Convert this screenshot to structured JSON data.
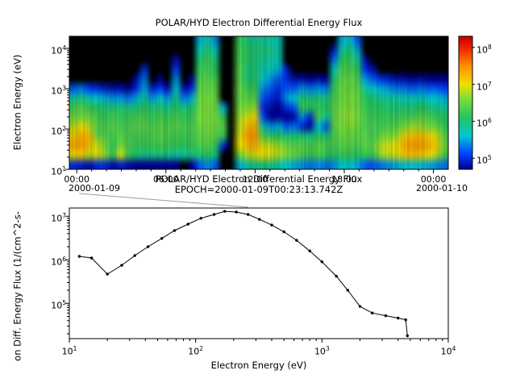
{
  "colors": {
    "background": "#ffffff",
    "line": "#000000",
    "callout": "#9a9a9a",
    "colormap_stops": [
      {
        "log10": 4.7,
        "hex": "#000090"
      },
      {
        "log10": 5.1,
        "hex": "#0040ff"
      },
      {
        "log10": 5.6,
        "hex": "#00c8d2"
      },
      {
        "log10": 6.1,
        "hex": "#25c45f"
      },
      {
        "log10": 6.6,
        "hex": "#7ade3c"
      },
      {
        "log10": 7.0,
        "hex": "#f0e000"
      },
      {
        "log10": 7.5,
        "hex": "#ff9000"
      },
      {
        "log10": 8.0,
        "hex": "#ee2200"
      },
      {
        "log10": 8.3,
        "hex": "#c80000"
      }
    ]
  },
  "top_panel": {
    "title": "POLAR/HYD  Electron Differential Energy Flux",
    "ylabel": "Electron Energy (eV)",
    "yticks": [
      {
        "label": "10^1",
        "log10": 1
      },
      {
        "label": "10^2",
        "log10": 2
      },
      {
        "label": "10^3",
        "log10": 3
      },
      {
        "label": "10^4",
        "log10": 4
      }
    ],
    "xticks": [
      {
        "label": "00:00",
        "hour": 0
      },
      {
        "label": "06:00",
        "hour": 6
      },
      {
        "label": "12:00",
        "hour": 12
      },
      {
        "label": "18:00",
        "hour": 18
      },
      {
        "label": "00:00",
        "hour": 24
      }
    ],
    "date_left": "2000-01-09",
    "date_right": "2000-01-10"
  },
  "colorbar": {
    "log10_min": 4.7,
    "log10_max": 8.3,
    "ticks": [
      {
        "label": "10^5",
        "log10": 5
      },
      {
        "label": "10^6",
        "log10": 6
      },
      {
        "label": "10^7",
        "log10": 7
      },
      {
        "label": "10^8",
        "log10": 8
      }
    ]
  },
  "bottom_panel": {
    "title_line1": "POLAR/HYD  Electron Differential Energy Flux",
    "title_line2": "EPOCH=2000-01-09T00:23:13.742Z",
    "xlabel": "Electron Energy (eV)",
    "ylabel": "on Diff. Energy Flux (1/(cm^2-s-",
    "xticks": [
      {
        "label": "10^1",
        "log10": 1
      },
      {
        "label": "10^2",
        "log10": 2
      },
      {
        "label": "10^3",
        "log10": 3
      },
      {
        "label": "10^4",
        "log10": 4
      }
    ],
    "yticks": [
      {
        "label": "10^5",
        "log10": 5
      },
      {
        "label": "10^6",
        "log10": 6
      },
      {
        "label": "10^7",
        "log10": 7
      }
    ]
  },
  "chart_data": [
    {
      "type": "heatmap",
      "title": "POLAR/HYD  Electron Differential Energy Flux",
      "ylabel": "Electron Energy (eV)",
      "x_range_hours": [
        0,
        24
      ],
      "x_date_start": "2000-01-09",
      "x_date_end": "2000-01-10",
      "y_log10_ev_range": [
        1.0,
        4.3
      ],
      "color_log10_flux_range": [
        4.7,
        8.3
      ],
      "time_bin_hours": 0.5,
      "rows_order": "top-to-bottom, energy log10 4.3 down to 1.0, value 0 = black/no-data",
      "values_log10_flux": [
        [
          0,
          0,
          0,
          0,
          0,
          5.2,
          5.8,
          6.3,
          6.5,
          6.8,
          7.1,
          7.3,
          7.0,
          5.0
        ],
        [
          0,
          0,
          0,
          0,
          0,
          5.3,
          5.9,
          6.4,
          6.6,
          7.0,
          7.3,
          7.4,
          7.1,
          4.9
        ],
        [
          0,
          0,
          0,
          0,
          0,
          5.1,
          5.7,
          6.2,
          6.5,
          6.8,
          7.2,
          7.2,
          6.8,
          4.8
        ],
        [
          0,
          0,
          0,
          0,
          0,
          5.0,
          5.6,
          6.1,
          6.3,
          6.4,
          6.5,
          6.9,
          6.9,
          5.0
        ],
        [
          0,
          0,
          0,
          0,
          0,
          4.9,
          5.5,
          6.0,
          6.2,
          6.3,
          6.4,
          6.6,
          6.7,
          5.0
        ],
        [
          0,
          0,
          0,
          0,
          0,
          4.8,
          5.4,
          6.0,
          6.3,
          6.4,
          6.3,
          6.2,
          6.1,
          4.8
        ],
        [
          0,
          0,
          0,
          0,
          0,
          4.8,
          5.4,
          6.0,
          6.2,
          6.3,
          6.4,
          6.6,
          6.9,
          4.9
        ],
        [
          0,
          0,
          0,
          0,
          0,
          4.7,
          5.3,
          5.9,
          6.2,
          6.3,
          6.3,
          6.3,
          6.2,
          4.8
        ],
        [
          0,
          0,
          0,
          0,
          4.8,
          5.0,
          5.5,
          6.0,
          6.3,
          6.4,
          6.3,
          6.2,
          6.0,
          4.7
        ],
        [
          0,
          0,
          0,
          5.0,
          5.3,
          5.5,
          5.8,
          6.1,
          6.3,
          6.4,
          6.3,
          6.2,
          5.9,
          4.7
        ],
        [
          0,
          0,
          0,
          0,
          0,
          4.9,
          5.4,
          6.0,
          6.2,
          6.3,
          6.3,
          6.2,
          5.9,
          4.6
        ],
        [
          0,
          0,
          0,
          0,
          4.7,
          5.1,
          5.6,
          6.0,
          6.3,
          6.4,
          6.4,
          6.3,
          6.0,
          4.7
        ],
        [
          0,
          0,
          0,
          0,
          0,
          4.8,
          5.4,
          5.9,
          6.2,
          6.3,
          6.3,
          6.2,
          5.9,
          4.6
        ],
        [
          0,
          0,
          4.8,
          5.1,
          5.4,
          5.6,
          5.9,
          6.1,
          6.3,
          6.4,
          6.3,
          6.2,
          5.8,
          4.6
        ],
        [
          0,
          0,
          0,
          0,
          0,
          4.8,
          5.3,
          5.9,
          6.2,
          6.3,
          6.2,
          6.1,
          5.8,
          4.5
        ],
        [
          0,
          0,
          0,
          0,
          4.7,
          5.0,
          5.5,
          6.0,
          6.2,
          6.3,
          6.3,
          6.2,
          5.9,
          4.6
        ],
        [
          5.5,
          5.8,
          6.0,
          6.2,
          6.3,
          6.4,
          6.5,
          6.5,
          6.6,
          6.5,
          6.4,
          6.3,
          6.0,
          5.2
        ],
        [
          5.8,
          6.0,
          6.2,
          6.3,
          6.4,
          6.5,
          6.6,
          6.6,
          6.6,
          6.6,
          6.5,
          6.4,
          6.1,
          5.4
        ],
        [
          5.4,
          5.7,
          6.0,
          6.1,
          6.3,
          6.4,
          6.5,
          6.5,
          6.6,
          6.5,
          6.4,
          6.2,
          5.9,
          5.2
        ],
        [
          0,
          0,
          0,
          0,
          0,
          0,
          0,
          5.5,
          6.2,
          6.4,
          6.2,
          5.0,
          0,
          0
        ],
        [
          0,
          0,
          0,
          0,
          0,
          0,
          0,
          0,
          0,
          0,
          0,
          0,
          0,
          0
        ],
        [
          6.2,
          6.3,
          6.3,
          6.4,
          6.4,
          6.5,
          6.5,
          6.6,
          6.7,
          6.8,
          6.9,
          7.0,
          6.5,
          5.5
        ],
        [
          6.0,
          6.1,
          6.1,
          6.0,
          6.0,
          6.2,
          6.4,
          6.6,
          6.9,
          7.2,
          7.4,
          7.2,
          6.8,
          5.8
        ],
        [
          5.9,
          6.0,
          6.0,
          6.0,
          6.1,
          6.2,
          6.4,
          6.7,
          7.0,
          7.3,
          7.4,
          7.3,
          6.9,
          5.9
        ],
        [
          5.9,
          6.0,
          5.9,
          5.8,
          5.6,
          5.4,
          5.2,
          5.0,
          5.2,
          5.8,
          6.4,
          6.9,
          7.0,
          6.0
        ],
        [
          5.8,
          5.9,
          5.8,
          5.7,
          5.4,
          5.2,
          5.0,
          4.8,
          4.7,
          5.4,
          6.2,
          6.8,
          6.9,
          5.9
        ],
        [
          5.7,
          5.8,
          5.7,
          5.5,
          5.2,
          5.0,
          4.9,
          4.7,
          4.8,
          5.5,
          6.1,
          6.7,
          6.8,
          5.8
        ],
        [
          0,
          0,
          0,
          4.9,
          5.0,
          5.2,
          5.4,
          5.0,
          4.7,
          5.2,
          6.0,
          6.5,
          6.6,
          5.6
        ],
        [
          0,
          0,
          0,
          0,
          4.8,
          5.2,
          5.6,
          5.2,
          4.8,
          5.3,
          6.0,
          6.4,
          6.5,
          5.5
        ],
        [
          0,
          0,
          0,
          0,
          4.8,
          5.4,
          6.0,
          6.2,
          5.4,
          5.0,
          6.0,
          6.4,
          6.3,
          5.4
        ],
        [
          0,
          0,
          0,
          0,
          4.7,
          5.3,
          5.9,
          6.1,
          5.0,
          4.8,
          5.9,
          6.3,
          6.2,
          5.3
        ],
        [
          0,
          0,
          0,
          0,
          4.8,
          5.4,
          6.0,
          6.2,
          6.3,
          5.6,
          6.1,
          6.4,
          6.3,
          5.4
        ],
        [
          0,
          0,
          0,
          0,
          4.7,
          5.3,
          5.9,
          6.1,
          5.8,
          5.2,
          6.0,
          6.3,
          6.2,
          5.3
        ],
        [
          0,
          4.9,
          5.3,
          5.7,
          6.0,
          6.2,
          6.3,
          6.4,
          6.4,
          6.4,
          6.3,
          6.3,
          6.1,
          5.4
        ],
        [
          5.5,
          5.8,
          6.1,
          6.3,
          6.4,
          6.5,
          6.5,
          6.6,
          6.6,
          6.6,
          6.5,
          6.4,
          6.2,
          5.6
        ],
        [
          5.7,
          6.0,
          6.2,
          6.3,
          6.5,
          6.5,
          6.6,
          6.6,
          6.7,
          6.6,
          6.5,
          6.4,
          6.2,
          5.6
        ],
        [
          5.2,
          5.5,
          5.9,
          6.1,
          6.3,
          6.4,
          6.5,
          6.5,
          6.6,
          6.5,
          6.4,
          6.3,
          6.1,
          5.5
        ],
        [
          0,
          0,
          4.8,
          5.0,
          5.4,
          5.8,
          6.1,
          6.2,
          6.3,
          6.3,
          6.4,
          6.4,
          6.2,
          5.2
        ],
        [
          0,
          0,
          0,
          4.8,
          5.2,
          5.6,
          6.0,
          6.1,
          6.2,
          6.3,
          6.3,
          6.4,
          6.2,
          5.2
        ],
        [
          0,
          0,
          0,
          0,
          5.0,
          5.5,
          5.9,
          6.1,
          6.2,
          6.3,
          6.5,
          6.8,
          6.7,
          5.3
        ],
        [
          0,
          0,
          0,
          0,
          4.9,
          5.4,
          5.8,
          6.0,
          6.2,
          6.3,
          6.6,
          6.9,
          6.8,
          5.4
        ],
        [
          0,
          0,
          0,
          0,
          4.8,
          5.3,
          5.8,
          6.0,
          6.2,
          6.4,
          6.7,
          7.0,
          6.9,
          5.5
        ],
        [
          0,
          0,
          0,
          0,
          4.8,
          5.3,
          5.7,
          6.0,
          6.3,
          6.6,
          7.1,
          7.3,
          7.1,
          5.6
        ],
        [
          0,
          0,
          0,
          0,
          4.7,
          5.2,
          5.7,
          6.0,
          6.3,
          6.7,
          7.2,
          7.4,
          7.2,
          5.6
        ],
        [
          0,
          0,
          0,
          0,
          4.8,
          5.3,
          5.7,
          6.1,
          6.4,
          6.7,
          7.2,
          7.4,
          7.1,
          5.6
        ],
        [
          0,
          0,
          0,
          0,
          4.7,
          5.2,
          5.6,
          6.0,
          6.3,
          6.6,
          7.1,
          7.3,
          7.0,
          5.5
        ],
        [
          0,
          0,
          0,
          0,
          4.7,
          5.2,
          5.6,
          5.9,
          6.2,
          6.5,
          6.9,
          7.1,
          6.8,
          5.4
        ],
        [
          0,
          0,
          0,
          0,
          4.7,
          5.1,
          5.5,
          5.8,
          6.1,
          6.2,
          6.4,
          6.5,
          6.3,
          5.3
        ]
      ]
    },
    {
      "type": "line",
      "title": "POLAR/HYD  Electron Differential Energy Flux  EPOCH=2000-01-09T00:23:13.742Z",
      "xlabel": "Electron Energy (eV)",
      "ylabel": "on Diff. Energy Flux (1/(cm^2-s-",
      "xlim_log10": [
        1,
        4
      ],
      "ylim_log10": [
        4.19,
        7.19
      ],
      "marker": "dot",
      "x_ev": [
        12,
        15,
        20,
        26,
        33,
        42,
        54,
        68,
        87,
        110,
        140,
        170,
        210,
        260,
        320,
        400,
        500,
        630,
        800,
        1000,
        1300,
        1600,
        2000,
        2500,
        3200,
        4000,
        4600,
        4750
      ],
      "y_flux": [
        1200000,
        1100000,
        470000,
        750000,
        1250000,
        2000000,
        3100000,
        4700000,
        6600000,
        9000000,
        11000000,
        13000000,
        12500000,
        11000000,
        8500000,
        6300000,
        4400000,
        2800000,
        1600000,
        900000,
        420000,
        200000,
        85000,
        60000,
        52000,
        46000,
        42000,
        18000
      ]
    }
  ]
}
